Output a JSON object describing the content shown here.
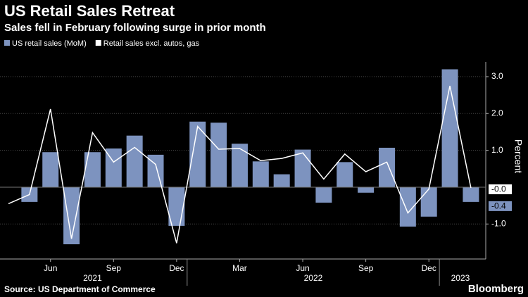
{
  "chart_data": {
    "type": "bar_line",
    "title": "US Retail Sales Retreat",
    "subtitle": "Sales fell in February following surge in prior month",
    "y_axis_label": "Percent",
    "source": "Source: US Department of Commerce",
    "brand": "Bloomberg",
    "categories": [
      null,
      null,
      "Jun",
      null,
      null,
      "Sep",
      null,
      null,
      "Dec",
      null,
      null,
      "Mar",
      null,
      null,
      "Jun",
      null,
      null,
      "Sep",
      null,
      null,
      "Dec",
      null,
      null
    ],
    "x_groups": [
      {
        "label": "2021",
        "start": 0,
        "end": 8
      },
      {
        "label": "2022",
        "start": 9,
        "end": 20
      },
      {
        "label": "2023",
        "start": 21,
        "end": 22
      }
    ],
    "series": [
      {
        "name": "US retail sales (MoM)",
        "type": "bar",
        "color": "#7d93bf",
        "values": [
          null,
          -0.4,
          0.95,
          -1.55,
          0.95,
          1.05,
          1.4,
          0.88,
          -1.05,
          1.78,
          1.75,
          1.18,
          0.7,
          0.35,
          1.02,
          -0.42,
          0.68,
          -0.15,
          1.07,
          -1.07,
          -0.8,
          3.2,
          -0.4
        ],
        "value_labels": [
          null,
          null,
          null,
          null,
          null,
          null,
          null,
          null,
          null,
          null,
          null,
          null,
          null,
          null,
          null,
          null,
          null,
          null,
          null,
          null,
          null,
          null,
          "-0.4"
        ]
      },
      {
        "name": "Retail sales excl. autos, gas",
        "type": "line",
        "color": "#ffffff",
        "values": [
          -0.45,
          -0.2,
          2.12,
          -1.4,
          1.48,
          0.68,
          1.08,
          0.62,
          -1.52,
          1.65,
          1.03,
          1.05,
          0.72,
          0.78,
          0.93,
          0.22,
          0.9,
          0.42,
          0.68,
          -0.7,
          -0.05,
          2.75,
          -0.02
        ],
        "value_labels": [
          null,
          null,
          null,
          null,
          null,
          null,
          null,
          null,
          null,
          null,
          null,
          null,
          null,
          null,
          null,
          null,
          null,
          null,
          null,
          null,
          null,
          null,
          "-0.0"
        ]
      }
    ],
    "ylim": [
      -1.95,
      3.4
    ],
    "yticks": [
      {
        "value": -1,
        "label": "-1.0"
      },
      {
        "value": 1,
        "label": "1.0"
      },
      {
        "value": 2,
        "label": "2.0"
      },
      {
        "value": 3,
        "label": "3.0"
      }
    ],
    "grid": true
  }
}
